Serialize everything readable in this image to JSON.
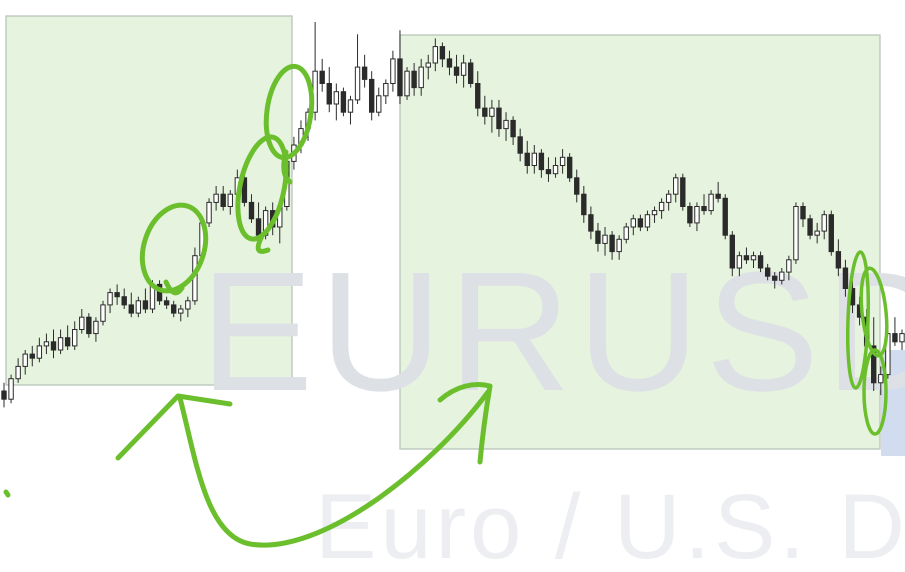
{
  "watermark": {
    "symbol": "EURUSD",
    "description": "Euro / U.S. Dol"
  },
  "colors": {
    "zone_fill": "#e6f3df",
    "zone_border": "#b9c4b9",
    "annotation_ink": "#6cbf2c",
    "candle_ink": "#2b2b2b",
    "candle_up_fill": "#ffffff"
  },
  "chart_data": {
    "type": "candlestick",
    "symbol": "EURUSD",
    "axes_visible": false,
    "grid": false,
    "note": "Prices are relative (no axis printed). Rises from a low near 10 to a peak near 94, then declines to a low near 12 with a small rebound at the end.",
    "ylim": [
      0,
      100
    ],
    "candles": [
      {
        "o": 10,
        "h": 12,
        "l": 6,
        "c": 8
      },
      {
        "o": 8,
        "h": 14,
        "l": 7,
        "c": 13
      },
      {
        "o": 13,
        "h": 18,
        "l": 12,
        "c": 16
      },
      {
        "o": 16,
        "h": 20,
        "l": 14,
        "c": 19
      },
      {
        "o": 19,
        "h": 21,
        "l": 16,
        "c": 18
      },
      {
        "o": 18,
        "h": 23,
        "l": 17,
        "c": 21
      },
      {
        "o": 21,
        "h": 24,
        "l": 19,
        "c": 22
      },
      {
        "o": 22,
        "h": 25,
        "l": 18,
        "c": 20
      },
      {
        "o": 20,
        "h": 25,
        "l": 19,
        "c": 23
      },
      {
        "o": 23,
        "h": 26,
        "l": 20,
        "c": 21
      },
      {
        "o": 21,
        "h": 27,
        "l": 20,
        "c": 25
      },
      {
        "o": 25,
        "h": 30,
        "l": 24,
        "c": 28
      },
      {
        "o": 28,
        "h": 29,
        "l": 23,
        "c": 24
      },
      {
        "o": 24,
        "h": 28,
        "l": 22,
        "c": 27
      },
      {
        "o": 27,
        "h": 32,
        "l": 26,
        "c": 31
      },
      {
        "o": 31,
        "h": 35,
        "l": 29,
        "c": 34
      },
      {
        "o": 34,
        "h": 36,
        "l": 31,
        "c": 33
      },
      {
        "o": 33,
        "h": 35,
        "l": 30,
        "c": 31
      },
      {
        "o": 31,
        "h": 34,
        "l": 28,
        "c": 29
      },
      {
        "o": 29,
        "h": 33,
        "l": 28,
        "c": 32
      },
      {
        "o": 32,
        "h": 35,
        "l": 29,
        "c": 30
      },
      {
        "o": 30,
        "h": 37,
        "l": 29,
        "c": 36
      },
      {
        "o": 36,
        "h": 37,
        "l": 31,
        "c": 32
      },
      {
        "o": 32,
        "h": 33,
        "l": 30,
        "c": 31
      },
      {
        "o": 31,
        "h": 32,
        "l": 28,
        "c": 29
      },
      {
        "o": 29,
        "h": 31,
        "l": 27,
        "c": 30
      },
      {
        "o": 30,
        "h": 33,
        "l": 28,
        "c": 32
      },
      {
        "o": 32,
        "h": 45,
        "l": 31,
        "c": 43
      },
      {
        "o": 43,
        "h": 52,
        "l": 42,
        "c": 51
      },
      {
        "o": 51,
        "h": 57,
        "l": 50,
        "c": 56
      },
      {
        "o": 56,
        "h": 60,
        "l": 54,
        "c": 58
      },
      {
        "o": 58,
        "h": 60,
        "l": 54,
        "c": 55
      },
      {
        "o": 55,
        "h": 59,
        "l": 53,
        "c": 58
      },
      {
        "o": 58,
        "h": 64,
        "l": 56,
        "c": 62
      },
      {
        "o": 62,
        "h": 64,
        "l": 55,
        "c": 56
      },
      {
        "o": 56,
        "h": 58,
        "l": 51,
        "c": 52
      },
      {
        "o": 52,
        "h": 56,
        "l": 46,
        "c": 48
      },
      {
        "o": 48,
        "h": 55,
        "l": 47,
        "c": 54
      },
      {
        "o": 54,
        "h": 56,
        "l": 48,
        "c": 50
      },
      {
        "o": 50,
        "h": 56,
        "l": 46,
        "c": 55
      },
      {
        "o": 55,
        "h": 67,
        "l": 54,
        "c": 66
      },
      {
        "o": 66,
        "h": 72,
        "l": 64,
        "c": 70
      },
      {
        "o": 70,
        "h": 76,
        "l": 68,
        "c": 74
      },
      {
        "o": 74,
        "h": 79,
        "l": 71,
        "c": 78
      },
      {
        "o": 78,
        "h": 100,
        "l": 76,
        "c": 88
      },
      {
        "o": 88,
        "h": 91,
        "l": 83,
        "c": 85
      },
      {
        "o": 85,
        "h": 89,
        "l": 78,
        "c": 80
      },
      {
        "o": 80,
        "h": 85,
        "l": 76,
        "c": 83
      },
      {
        "o": 83,
        "h": 84,
        "l": 77,
        "c": 78
      },
      {
        "o": 78,
        "h": 82,
        "l": 75,
        "c": 81
      },
      {
        "o": 81,
        "h": 97,
        "l": 80,
        "c": 89
      },
      {
        "o": 89,
        "h": 92,
        "l": 84,
        "c": 86
      },
      {
        "o": 86,
        "h": 88,
        "l": 76,
        "c": 78
      },
      {
        "o": 78,
        "h": 84,
        "l": 77,
        "c": 82
      },
      {
        "o": 82,
        "h": 86,
        "l": 80,
        "c": 85
      },
      {
        "o": 85,
        "h": 93,
        "l": 83,
        "c": 91
      },
      {
        "o": 91,
        "h": 98,
        "l": 80,
        "c": 82
      },
      {
        "o": 82,
        "h": 89,
        "l": 81,
        "c": 88
      },
      {
        "o": 88,
        "h": 90,
        "l": 82,
        "c": 84
      },
      {
        "o": 84,
        "h": 91,
        "l": 82,
        "c": 89
      },
      {
        "o": 89,
        "h": 92,
        "l": 86,
        "c": 90
      },
      {
        "o": 90,
        "h": 96,
        "l": 88,
        "c": 94
      },
      {
        "o": 94,
        "h": 95,
        "l": 89,
        "c": 91
      },
      {
        "o": 91,
        "h": 93,
        "l": 87,
        "c": 89
      },
      {
        "o": 89,
        "h": 92,
        "l": 85,
        "c": 87
      },
      {
        "o": 87,
        "h": 92,
        "l": 84,
        "c": 90
      },
      {
        "o": 90,
        "h": 91,
        "l": 84,
        "c": 85
      },
      {
        "o": 85,
        "h": 88,
        "l": 77,
        "c": 79
      },
      {
        "o": 79,
        "h": 82,
        "l": 75,
        "c": 77
      },
      {
        "o": 77,
        "h": 81,
        "l": 73,
        "c": 79
      },
      {
        "o": 79,
        "h": 81,
        "l": 72,
        "c": 74
      },
      {
        "o": 74,
        "h": 78,
        "l": 71,
        "c": 76
      },
      {
        "o": 76,
        "h": 77,
        "l": 70,
        "c": 72
      },
      {
        "o": 72,
        "h": 74,
        "l": 66,
        "c": 68
      },
      {
        "o": 68,
        "h": 71,
        "l": 63,
        "c": 65
      },
      {
        "o": 65,
        "h": 70,
        "l": 63,
        "c": 68
      },
      {
        "o": 68,
        "h": 69,
        "l": 62,
        "c": 64
      },
      {
        "o": 64,
        "h": 67,
        "l": 61,
        "c": 63
      },
      {
        "o": 63,
        "h": 67,
        "l": 62,
        "c": 65
      },
      {
        "o": 65,
        "h": 69,
        "l": 63,
        "c": 67
      },
      {
        "o": 67,
        "h": 68,
        "l": 61,
        "c": 62
      },
      {
        "o": 62,
        "h": 64,
        "l": 56,
        "c": 58
      },
      {
        "o": 58,
        "h": 60,
        "l": 51,
        "c": 53
      },
      {
        "o": 53,
        "h": 55,
        "l": 47,
        "c": 49
      },
      {
        "o": 49,
        "h": 51,
        "l": 44,
        "c": 46
      },
      {
        "o": 46,
        "h": 50,
        "l": 43,
        "c": 48
      },
      {
        "o": 48,
        "h": 49,
        "l": 42,
        "c": 44
      },
      {
        "o": 44,
        "h": 48,
        "l": 42,
        "c": 47
      },
      {
        "o": 47,
        "h": 51,
        "l": 46,
        "c": 50
      },
      {
        "o": 50,
        "h": 53,
        "l": 48,
        "c": 52
      },
      {
        "o": 52,
        "h": 53,
        "l": 49,
        "c": 50
      },
      {
        "o": 50,
        "h": 54,
        "l": 49,
        "c": 53
      },
      {
        "o": 53,
        "h": 55,
        "l": 51,
        "c": 54
      },
      {
        "o": 54,
        "h": 57,
        "l": 52,
        "c": 56
      },
      {
        "o": 56,
        "h": 59,
        "l": 54,
        "c": 58
      },
      {
        "o": 58,
        "h": 63,
        "l": 56,
        "c": 62
      },
      {
        "o": 62,
        "h": 63,
        "l": 54,
        "c": 55
      },
      {
        "o": 55,
        "h": 56,
        "l": 50,
        "c": 51
      },
      {
        "o": 51,
        "h": 56,
        "l": 49,
        "c": 55
      },
      {
        "o": 55,
        "h": 58,
        "l": 53,
        "c": 54
      },
      {
        "o": 54,
        "h": 59,
        "l": 53,
        "c": 58
      },
      {
        "o": 58,
        "h": 61,
        "l": 56,
        "c": 57
      },
      {
        "o": 57,
        "h": 58,
        "l": 47,
        "c": 48
      },
      {
        "o": 48,
        "h": 49,
        "l": 38,
        "c": 40
      },
      {
        "o": 40,
        "h": 44,
        "l": 38,
        "c": 43
      },
      {
        "o": 43,
        "h": 45,
        "l": 41,
        "c": 42
      },
      {
        "o": 42,
        "h": 44,
        "l": 40,
        "c": 43
      },
      {
        "o": 43,
        "h": 44,
        "l": 39,
        "c": 40
      },
      {
        "o": 40,
        "h": 41,
        "l": 37,
        "c": 38
      },
      {
        "o": 38,
        "h": 39,
        "l": 35,
        "c": 37
      },
      {
        "o": 37,
        "h": 40,
        "l": 36,
        "c": 39
      },
      {
        "o": 39,
        "h": 43,
        "l": 37,
        "c": 42
      },
      {
        "o": 42,
        "h": 56,
        "l": 41,
        "c": 55
      },
      {
        "o": 55,
        "h": 56,
        "l": 50,
        "c": 52
      },
      {
        "o": 52,
        "h": 53,
        "l": 47,
        "c": 48
      },
      {
        "o": 48,
        "h": 51,
        "l": 46,
        "c": 49
      },
      {
        "o": 49,
        "h": 54,
        "l": 47,
        "c": 53
      },
      {
        "o": 53,
        "h": 54,
        "l": 43,
        "c": 44
      },
      {
        "o": 44,
        "h": 47,
        "l": 38,
        "c": 40
      },
      {
        "o": 40,
        "h": 42,
        "l": 33,
        "c": 35
      },
      {
        "o": 35,
        "h": 37,
        "l": 29,
        "c": 31
      },
      {
        "o": 31,
        "h": 33,
        "l": 26,
        "c": 28
      },
      {
        "o": 28,
        "h": 30,
        "l": 19,
        "c": 21
      },
      {
        "o": 21,
        "h": 28,
        "l": 10,
        "c": 12
      },
      {
        "o": 12,
        "h": 16,
        "l": 9,
        "c": 14
      },
      {
        "o": 14,
        "h": 25,
        "l": 13,
        "c": 24
      },
      {
        "o": 24,
        "h": 28,
        "l": 21,
        "c": 22
      },
      {
        "o": 22,
        "h": 25,
        "l": 20,
        "c": 24
      }
    ]
  }
}
